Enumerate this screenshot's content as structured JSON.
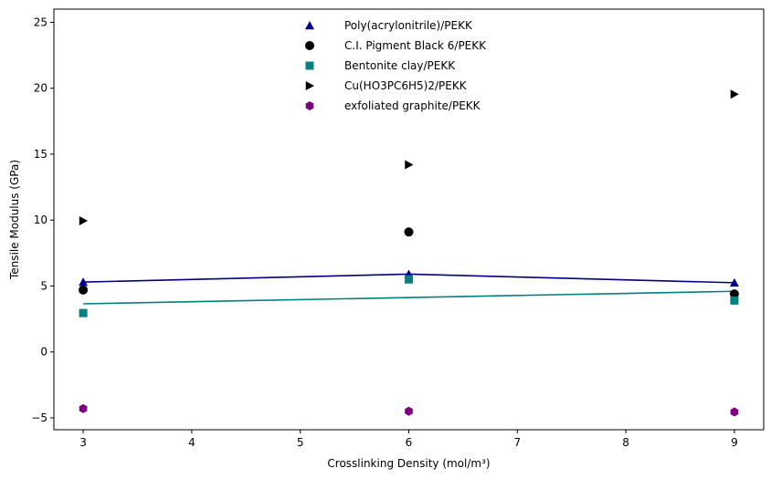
{
  "chart_data": {
    "type": "scatter",
    "title": "",
    "xlabel": "Crosslinking Density (mol/m³)",
    "ylabel": "Tensile Modulus (GPa)",
    "xlim": [
      2.73,
      9.27
    ],
    "ylim": [
      -5.9,
      26.0
    ],
    "xticks": [
      3,
      4,
      5,
      6,
      7,
      8,
      9
    ],
    "yticks": [
      -5,
      0,
      5,
      10,
      15,
      20,
      25
    ],
    "grid": false,
    "legend_position": "top-center",
    "series": [
      {
        "name": "Poly(acrylonitrile)/PEKK",
        "marker": "triangle-up",
        "color": "#00008b",
        "x": [
          3,
          6,
          9
        ],
        "y": [
          5.3,
          5.9,
          5.25
        ],
        "fit": {
          "x": [
            3,
            6,
            9
          ],
          "y": [
            5.3,
            5.9,
            5.25
          ],
          "color": "#000080"
        }
      },
      {
        "name": "C.I. Pigment Black 6/PEKK",
        "marker": "circle",
        "color": "#000000",
        "x": [
          3,
          6,
          9
        ],
        "y": [
          4.7,
          9.1,
          4.4
        ]
      },
      {
        "name": "Bentonite clay/PEKK",
        "marker": "square",
        "color": "#008080",
        "x": [
          3,
          6,
          9
        ],
        "y": [
          2.95,
          5.5,
          3.9
        ],
        "fit": {
          "x": [
            3,
            9
          ],
          "y": [
            3.65,
            4.6
          ],
          "color": "#008080"
        }
      },
      {
        "name": "Cu(HO3PC6H5)2/PEKK",
        "marker": "triangle-right",
        "color": "#000000",
        "x": [
          3,
          6,
          9
        ],
        "y": [
          9.95,
          14.2,
          19.55
        ]
      },
      {
        "name": "exfoliated graphite/PEKK",
        "marker": "hexagon",
        "color": "#800080",
        "x": [
          3,
          6,
          9
        ],
        "y": [
          -4.3,
          -4.5,
          -4.55
        ]
      }
    ]
  }
}
